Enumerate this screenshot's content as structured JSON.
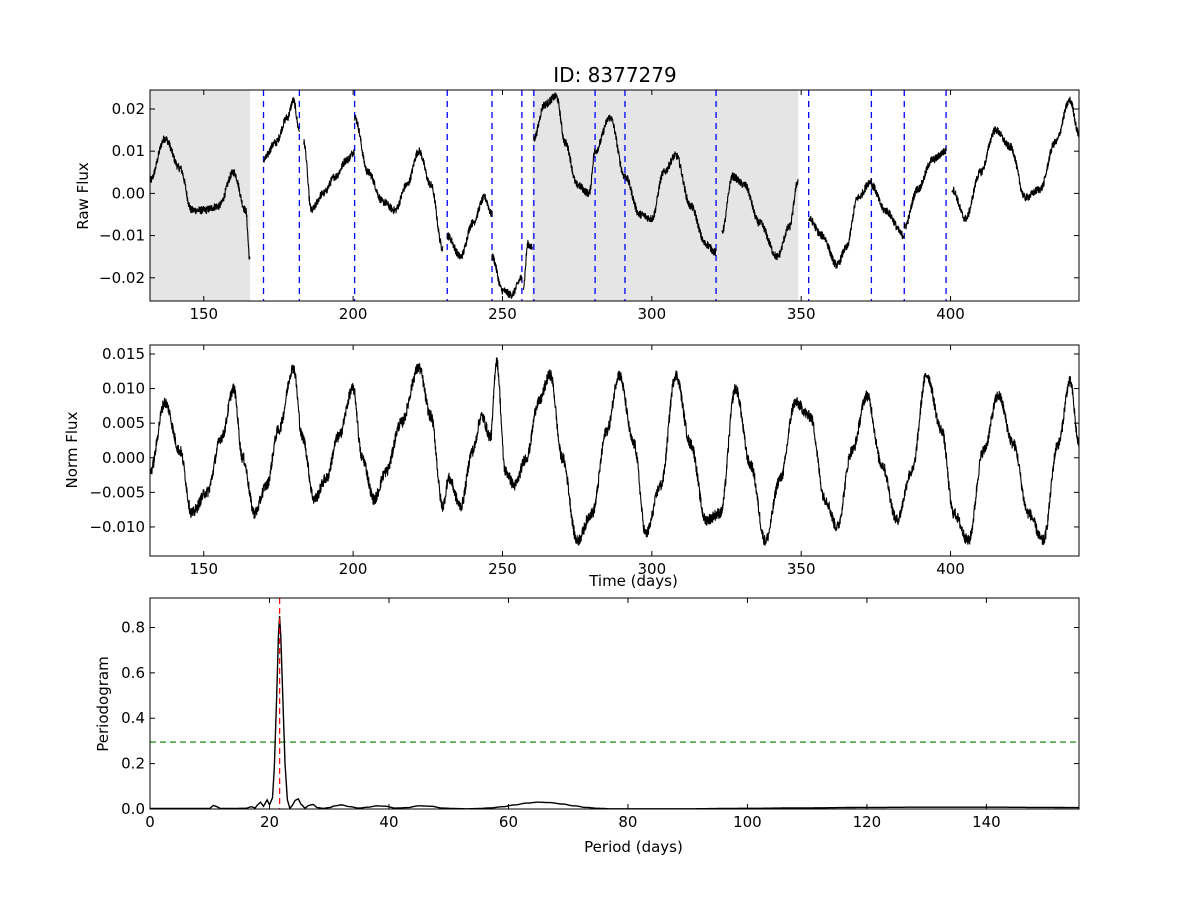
{
  "chart_data": [
    {
      "type": "line",
      "title": "ID: 8377279",
      "xlabel": "",
      "ylabel": "Raw Flux",
      "xlim": [
        132,
        443
      ],
      "ylim": [
        -0.0255,
        0.0245
      ],
      "xticks": [
        150,
        200,
        250,
        300,
        350,
        400
      ],
      "xtick_labels": [
        "150",
        "200",
        "250",
        "300",
        "350",
        "400"
      ],
      "yticks": [
        -0.02,
        -0.01,
        0.0,
        0.01,
        0.02
      ],
      "ytick_labels": [
        "−0.02",
        "−0.01",
        "0.00",
        "0.01",
        "0.02"
      ],
      "shaded_regions": [
        [
          132,
          165.5
        ],
        [
          260,
          349
        ]
      ],
      "shade_color": "#e5e5e5",
      "vlines": [
        170,
        182,
        200.5,
        231.5,
        246.5,
        256.5,
        260.5,
        281,
        291,
        321.5,
        352.5,
        373.5,
        384.5,
        398.5
      ],
      "vline_color": "#0000ff",
      "line_color": "#000000",
      "noise": 0.0009,
      "series": [
        {
          "x": [
            132,
            137,
            142,
            146,
            150,
            155,
            160,
            164,
            165.5
          ],
          "y": [
            0.003,
            0.013,
            0.006,
            -0.004,
            -0.004,
            -0.003,
            0.005,
            -0.004,
            -0.016
          ]
        },
        {
          "x": [
            170,
            174,
            178,
            180,
            182
          ],
          "y": [
            0.008,
            0.012,
            0.018,
            0.022,
            0.015
          ]
        },
        {
          "x": [
            183.5,
            186,
            190,
            194,
            198,
            200.5
          ],
          "y": [
            0.012,
            -0.004,
            0.0,
            0.004,
            0.008,
            0.01
          ]
        },
        {
          "x": [
            200.5,
            205,
            210,
            214,
            218,
            222,
            226,
            230
          ],
          "y": [
            0.018,
            0.005,
            -0.002,
            -0.004,
            0.002,
            0.01,
            0.002,
            -0.013
          ]
        },
        {
          "x": [
            231.5,
            236,
            240,
            244,
            246.5
          ],
          "y": [
            -0.01,
            -0.015,
            -0.007,
            -0.001,
            -0.005
          ]
        },
        {
          "x": [
            246.5,
            250,
            253,
            256.5
          ],
          "y": [
            -0.015,
            -0.023,
            -0.024,
            -0.02
          ]
        },
        {
          "x": [
            257,
            258.5,
            260
          ],
          "y": [
            -0.022,
            -0.012,
            -0.013
          ]
        },
        {
          "x": [
            260.5,
            264,
            268,
            271,
            275,
            279,
            281
          ],
          "y": [
            0.013,
            0.021,
            0.023,
            0.012,
            0.002,
            0.0,
            0.01
          ]
        },
        {
          "x": [
            281,
            286,
            291
          ],
          "y": [
            0.01,
            0.018,
            0.004
          ]
        },
        {
          "x": [
            291,
            296,
            300,
            304,
            308,
            313,
            318,
            321.5
          ],
          "y": [
            0.004,
            -0.005,
            -0.006,
            0.005,
            0.009,
            -0.003,
            -0.012,
            -0.014
          ]
        },
        {
          "x": [
            323.5,
            327,
            331,
            336,
            342,
            346,
            349
          ],
          "y": [
            -0.009,
            0.004,
            0.002,
            -0.007,
            -0.015,
            -0.008,
            0.003
          ]
        },
        {
          "x": [
            352.5,
            357,
            362,
            365,
            369,
            373.5
          ],
          "y": [
            -0.006,
            -0.01,
            -0.017,
            -0.013,
            -0.001,
            0.003
          ]
        },
        {
          "x": [
            373.5,
            378,
            384.5
          ],
          "y": [
            0.002,
            -0.004,
            -0.01
          ]
        },
        {
          "x": [
            384.5,
            389,
            394,
            398.5
          ],
          "y": [
            -0.008,
            0.001,
            0.008,
            0.01
          ]
        },
        {
          "x": [
            400.5,
            405,
            410,
            415,
            420,
            425,
            430,
            435,
            440,
            443
          ],
          "y": [
            0.001,
            -0.006,
            0.005,
            0.015,
            0.011,
            -0.001,
            0.001,
            0.012,
            0.022,
            0.014
          ]
        }
      ]
    },
    {
      "type": "line",
      "title": "",
      "xlabel": "Time (days)",
      "ylabel": "Norm Flux",
      "xlim": [
        132,
        443
      ],
      "ylim": [
        -0.0142,
        0.0163
      ],
      "xticks": [
        150,
        200,
        250,
        300,
        350,
        400
      ],
      "xtick_labels": [
        "150",
        "200",
        "250",
        "300",
        "350",
        "400"
      ],
      "yticks": [
        -0.01,
        -0.005,
        0.0,
        0.005,
        0.01,
        0.015
      ],
      "ytick_labels": [
        "−0.010",
        "−0.005",
        "0.000",
        "0.005",
        "0.010",
        "0.015"
      ],
      "line_color": "#000000",
      "noise": 0.0008,
      "series": [
        {
          "x": [
            132,
            137,
            142,
            146,
            151,
            156,
            160,
            163,
            167,
            171,
            175,
            180,
            183,
            187,
            191,
            195,
            200,
            203,
            207,
            211,
            216,
            222,
            226,
            230,
            232,
            236,
            240,
            243,
            246,
            248,
            251,
            254,
            258,
            262,
            266,
            270,
            275,
            280,
            285,
            289,
            294,
            298,
            303,
            308,
            313,
            318,
            323,
            328,
            333,
            338,
            343,
            348,
            353,
            358,
            362,
            367,
            372,
            377,
            382,
            387,
            392,
            397,
            401,
            406,
            411,
            416,
            421,
            426,
            431,
            436,
            440,
            443
          ],
          "y": [
            -0.002,
            0.008,
            0.001,
            -0.008,
            -0.005,
            0.003,
            0.01,
            0.0,
            -0.008,
            -0.004,
            0.004,
            0.013,
            0.003,
            -0.006,
            -0.003,
            0.003,
            0.01,
            0.0,
            -0.006,
            -0.002,
            0.005,
            0.013,
            0.006,
            -0.007,
            -0.003,
            -0.007,
            0.001,
            0.006,
            0.003,
            0.014,
            -0.002,
            -0.004,
            0.0,
            0.008,
            0.012,
            0.0,
            -0.012,
            -0.008,
            0.004,
            0.012,
            0.002,
            -0.011,
            -0.004,
            0.012,
            0.002,
            -0.009,
            -0.008,
            0.01,
            -0.001,
            -0.012,
            -0.003,
            0.008,
            0.006,
            -0.006,
            -0.01,
            0.001,
            0.009,
            -0.001,
            -0.009,
            -0.002,
            0.012,
            0.004,
            -0.008,
            -0.012,
            0.001,
            0.009,
            0.002,
            -0.008,
            -0.012,
            0.002,
            0.011,
            0.002
          ]
        }
      ]
    },
    {
      "type": "line",
      "title": "",
      "xlabel": "Period (days)",
      "ylabel": "Periodogram",
      "xlim": [
        0,
        155.5
      ],
      "ylim": [
        0,
        0.93
      ],
      "xticks": [
        0,
        20,
        40,
        60,
        80,
        100,
        120,
        140
      ],
      "xtick_labels": [
        "0",
        "20",
        "40",
        "60",
        "80",
        "100",
        "120",
        "140"
      ],
      "yticks": [
        0.0,
        0.2,
        0.4,
        0.6,
        0.8
      ],
      "ytick_labels": [
        "0.0",
        "0.2",
        "0.4",
        "0.6",
        "0.8"
      ],
      "line_color": "#000000",
      "peak_period": 21.7,
      "peak_line_color": "#ff0000",
      "threshold": 0.295,
      "threshold_color": "#007f00",
      "series": [
        {
          "x": [
            0,
            10,
            10.6,
            11.2,
            11.8,
            16,
            17,
            17.6,
            18,
            18.5,
            19,
            19.6,
            20,
            20.5,
            20.8,
            21.2,
            21.5,
            21.7,
            21.9,
            22.2,
            22.6,
            23,
            23.4,
            23.8,
            24.3,
            24.8,
            25.3,
            26,
            26.5,
            27.3,
            28,
            29,
            30,
            31,
            32,
            33.5,
            35,
            36.5,
            38,
            39.5,
            41,
            43,
            45,
            47,
            49,
            51,
            53,
            55,
            57,
            59,
            61,
            63,
            65,
            67,
            69,
            71,
            73,
            75,
            77,
            80,
            90,
            100,
            110,
            120,
            130,
            140,
            150,
            155.5
          ],
          "y": [
            0.002,
            0.002,
            0.016,
            0.01,
            0.002,
            0.003,
            0.01,
            0.004,
            0.018,
            0.03,
            0.012,
            0.04,
            0.018,
            0.05,
            0.18,
            0.5,
            0.76,
            0.85,
            0.76,
            0.52,
            0.2,
            0.04,
            0.003,
            0.015,
            0.038,
            0.045,
            0.02,
            0.004,
            0.015,
            0.02,
            0.006,
            0.003,
            0.006,
            0.014,
            0.018,
            0.01,
            0.004,
            0.008,
            0.014,
            0.012,
            0.004,
            0.006,
            0.014,
            0.012,
            0.004,
            0.002,
            0.001,
            0.002,
            0.005,
            0.01,
            0.018,
            0.026,
            0.03,
            0.028,
            0.022,
            0.014,
            0.007,
            0.003,
            0.001,
            0.001,
            0.001,
            0.003,
            0.005,
            0.007,
            0.008,
            0.008,
            0.007,
            0.006
          ]
        }
      ]
    }
  ]
}
